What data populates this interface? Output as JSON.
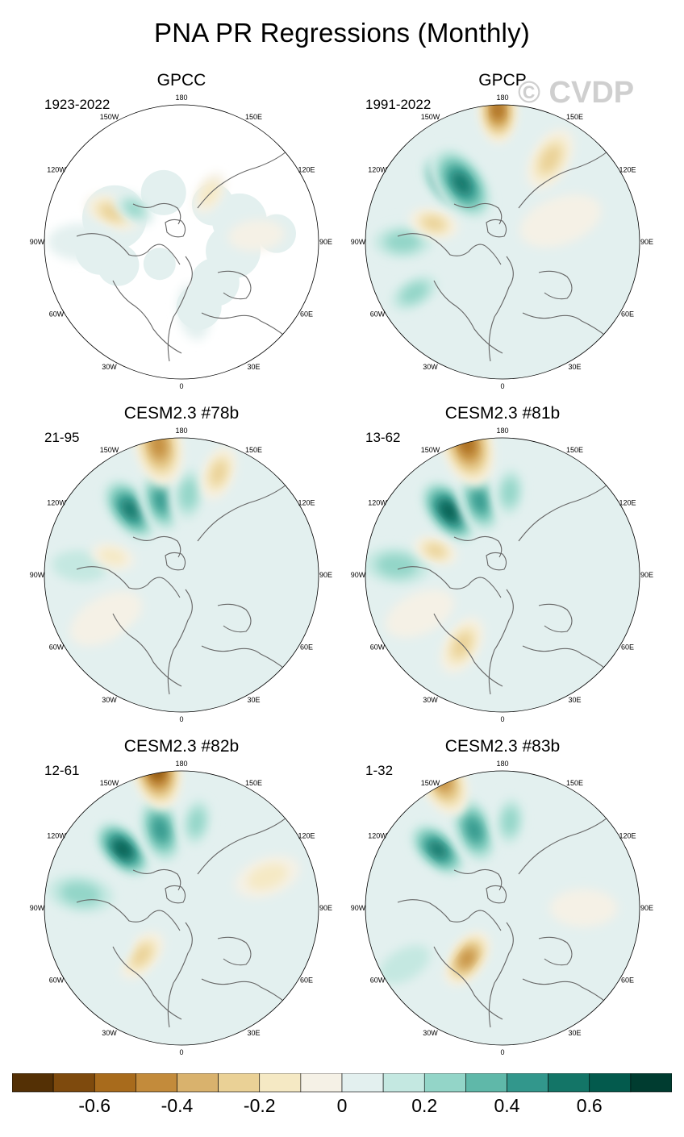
{
  "title": "PNA PR Regressions (Monthly)",
  "watermark": "© CVDP",
  "lon_labels": [
    "180",
    "150E",
    "120E",
    "90E",
    "60E",
    "30E",
    "0",
    "30W",
    "60W",
    "90W",
    "120W",
    "150W"
  ],
  "chart_data": {
    "type": "heatmap",
    "projection": "polar stereographic, Northern Hemisphere",
    "variable": "precipitation regression onto PNA index",
    "panels": [
      {
        "title": "GPCC",
        "years": "1923-2022",
        "land_only": true,
        "features": [
          {
            "lon": 247,
            "lat": 48,
            "value": -0.35,
            "size": 1.0
          },
          {
            "lon": 235,
            "lat": 57,
            "value": 0.25,
            "size": 0.8
          },
          {
            "lon": 270,
            "lat": 36,
            "value": 0.15,
            "size": 1.2
          },
          {
            "lon": 95,
            "lat": 48,
            "value": -0.15,
            "size": 1.0
          },
          {
            "lon": 10,
            "lat": 50,
            "value": 0.1,
            "size": 1.0
          },
          {
            "lon": 150,
            "lat": 58,
            "value": -0.2,
            "size": 0.8
          }
        ]
      },
      {
        "title": "GPCP",
        "years": "1991-2022",
        "land_only": false,
        "features": [
          {
            "lon": 222,
            "lat": 46,
            "value": 0.75,
            "size": 1.3
          },
          {
            "lon": 215,
            "lat": 50,
            "value": 0.55,
            "size": 1.6
          },
          {
            "lon": 182,
            "lat": 22,
            "value": -0.55,
            "size": 1.2
          },
          {
            "lon": 150,
            "lat": 38,
            "value": -0.35,
            "size": 1.2
          },
          {
            "lon": 270,
            "lat": 36,
            "value": 0.25,
            "size": 1.4
          },
          {
            "lon": 300,
            "lat": 35,
            "value": 0.3,
            "size": 1.2
          },
          {
            "lon": 255,
            "lat": 50,
            "value": -0.3,
            "size": 0.9
          },
          {
            "lon": 110,
            "lat": 55,
            "value": -0.1,
            "size": 1.5
          },
          {
            "lon": 20,
            "lat": 42,
            "value": 0.15,
            "size": 1.5
          }
        ]
      },
      {
        "title": "CESM2.3 #78b",
        "years": "21-95",
        "land_only": false,
        "features": [
          {
            "lon": 218,
            "lat": 44,
            "value": 0.6,
            "size": 1.4
          },
          {
            "lon": 195,
            "lat": 47,
            "value": 0.45,
            "size": 1.3
          },
          {
            "lon": 175,
            "lat": 45,
            "value": 0.3,
            "size": 1.2
          },
          {
            "lon": 190,
            "lat": 22,
            "value": -0.5,
            "size": 1.5
          },
          {
            "lon": 160,
            "lat": 32,
            "value": -0.25,
            "size": 1.0
          },
          {
            "lon": 265,
            "lat": 35,
            "value": 0.2,
            "size": 1.6
          },
          {
            "lon": 300,
            "lat": 42,
            "value": -0.15,
            "size": 1.4
          },
          {
            "lon": 330,
            "lat": 40,
            "value": 0.15,
            "size": 1.2
          },
          {
            "lon": 255,
            "lat": 50,
            "value": -0.2,
            "size": 0.8
          }
        ]
      },
      {
        "title": "CESM2.3 #81b",
        "years": "13-62",
        "land_only": false,
        "features": [
          {
            "lon": 220,
            "lat": 44,
            "value": 0.65,
            "size": 1.4
          },
          {
            "lon": 197,
            "lat": 47,
            "value": 0.45,
            "size": 1.3
          },
          {
            "lon": 175,
            "lat": 44,
            "value": 0.3,
            "size": 1.1
          },
          {
            "lon": 195,
            "lat": 20,
            "value": -0.6,
            "size": 1.6
          },
          {
            "lon": 265,
            "lat": 33,
            "value": 0.25,
            "size": 1.6
          },
          {
            "lon": 295,
            "lat": 40,
            "value": -0.15,
            "size": 1.3
          },
          {
            "lon": 330,
            "lat": 45,
            "value": -0.25,
            "size": 1.1
          },
          {
            "lon": 250,
            "lat": 50,
            "value": -0.25,
            "size": 0.8
          }
        ]
      },
      {
        "title": "CESM2.3 #82b",
        "years": "12-61",
        "land_only": false,
        "features": [
          {
            "lon": 225,
            "lat": 44,
            "value": 0.65,
            "size": 1.3
          },
          {
            "lon": 195,
            "lat": 45,
            "value": 0.45,
            "size": 1.4
          },
          {
            "lon": 170,
            "lat": 42,
            "value": 0.3,
            "size": 1.1
          },
          {
            "lon": 190,
            "lat": 18,
            "value": -0.65,
            "size": 1.5
          },
          {
            "lon": 262,
            "lat": 35,
            "value": 0.25,
            "size": 1.6
          },
          {
            "lon": 320,
            "lat": 55,
            "value": -0.3,
            "size": 1.0
          },
          {
            "lon": 110,
            "lat": 40,
            "value": -0.2,
            "size": 1.2
          },
          {
            "lon": 300,
            "lat": 38,
            "value": 0.15,
            "size": 1.3
          }
        ]
      },
      {
        "title": "CESM2.3 #83b",
        "years": "1-32",
        "land_only": false,
        "features": [
          {
            "lon": 228,
            "lat": 42,
            "value": 0.55,
            "size": 1.3
          },
          {
            "lon": 200,
            "lat": 44,
            "value": 0.45,
            "size": 1.4
          },
          {
            "lon": 175,
            "lat": 42,
            "value": 0.3,
            "size": 1.1
          },
          {
            "lon": 205,
            "lat": 18,
            "value": -0.5,
            "size": 1.4
          },
          {
            "lon": 325,
            "lat": 55,
            "value": -0.45,
            "size": 1.1
          },
          {
            "lon": 300,
            "lat": 30,
            "value": 0.2,
            "size": 1.6
          },
          {
            "lon": 260,
            "lat": 35,
            "value": 0.15,
            "size": 1.4
          },
          {
            "lon": 90,
            "lat": 45,
            "value": -0.15,
            "size": 1.2
          }
        ]
      }
    ],
    "colorbar": {
      "levels": [
        -0.7,
        -0.6,
        -0.5,
        -0.4,
        -0.3,
        -0.2,
        -0.1,
        0,
        0.1,
        0.2,
        0.3,
        0.4,
        0.5,
        0.6,
        0.7
      ],
      "colors": [
        "#543005",
        "#7e4a0d",
        "#a86b1c",
        "#c38b3b",
        "#d9b26d",
        "#ead196",
        "#f5e9c4",
        "#f5f1e6",
        "#e3f0ef",
        "#c4e8e1",
        "#93d5c8",
        "#5fb8a9",
        "#32978c",
        "#137567",
        "#035a4d",
        "#003c30"
      ],
      "tick_values": [
        -0.6,
        -0.4,
        -0.2,
        0,
        0.2,
        0.4,
        0.6
      ],
      "tick_labels": [
        "-0.6",
        "-0.4",
        "-0.2",
        "0",
        "0.2",
        "0.4",
        "0.6"
      ]
    }
  }
}
